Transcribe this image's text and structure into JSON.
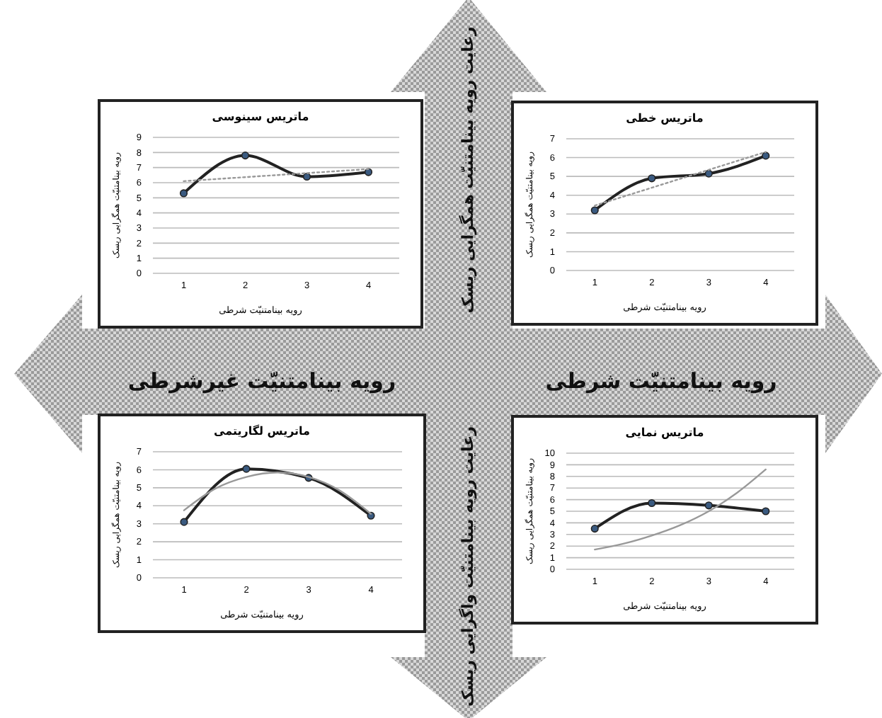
{
  "chart_data": [
    {
      "type": "line",
      "title": "ماتریس سینوسی",
      "xlabel": "رویه بینامتنیّت شرطی",
      "ylabel": "رویه بینامتنیّت همگرایی ریسک",
      "xlim": [
        0.5,
        4.5
      ],
      "xticks": [
        1,
        2,
        3,
        4
      ],
      "ylim": [
        0,
        9
      ],
      "yticks": [
        0,
        1,
        2,
        3,
        4,
        5,
        6,
        7,
        8,
        9
      ],
      "grid": "y",
      "series": [
        {
          "x": [
            1,
            2,
            3,
            4
          ],
          "values": [
            5.3,
            7.8,
            6.4,
            6.7
          ],
          "color": "#222222",
          "marker": "circle",
          "line_style": "solid"
        },
        {
          "x": [
            1,
            4
          ],
          "values": [
            6.1,
            6.9
          ],
          "color": "#999999",
          "marker": "none",
          "line_style": "dotted"
        }
      ]
    },
    {
      "type": "line",
      "title": "ماتریس خطی",
      "xlabel": "رویه بینامتنیّت شرطی",
      "ylabel": "رویه بینامتنیّت همگرایی ریسک",
      "xlim": [
        0.5,
        4.5
      ],
      "xticks": [
        1,
        2,
        3,
        4
      ],
      "ylim": [
        0,
        7
      ],
      "yticks": [
        0,
        1,
        2,
        3,
        4,
        5,
        6,
        7
      ],
      "grid": "y",
      "series": [
        {
          "x": [
            1,
            2,
            3,
            4
          ],
          "values": [
            3.2,
            4.9,
            5.15,
            6.1
          ],
          "color": "#222222",
          "marker": "circle",
          "line_style": "solid"
        },
        {
          "x": [
            1,
            4
          ],
          "values": [
            3.45,
            6.3
          ],
          "color": "#999999",
          "marker": "none",
          "line_style": "dotted"
        }
      ]
    },
    {
      "type": "line",
      "title": "ماتریس لگاریتمی",
      "xlabel": "رویه بینامتنیّت شرطی",
      "ylabel": "رویه بینامتنیّت همگرایی ریسک",
      "xlim": [
        0.5,
        4.5
      ],
      "xticks": [
        1,
        2,
        3,
        4
      ],
      "ylim": [
        0,
        7
      ],
      "yticks": [
        0,
        1,
        2,
        3,
        4,
        5,
        6,
        7
      ],
      "grid": "y",
      "series": [
        {
          "x": [
            1,
            2,
            3,
            4
          ],
          "values": [
            3.1,
            6.05,
            5.55,
            3.45
          ],
          "color": "#222222",
          "marker": "circle",
          "line_style": "solid"
        },
        {
          "x": [
            1,
            1.5,
            2,
            2.5,
            3,
            3.5,
            4
          ],
          "values": [
            3.75,
            4.95,
            5.6,
            5.85,
            5.6,
            4.85,
            3.55
          ],
          "color": "#999999",
          "marker": "none",
          "line_style": "solid"
        }
      ]
    },
    {
      "type": "line",
      "title": "ماتریس نمایی",
      "xlabel": "رویه بینامتنیّت شرطی",
      "ylabel": "رویه بینامتنیّت همگرایی ریسک",
      "xlim": [
        0.5,
        4.5
      ],
      "xticks": [
        1,
        2,
        3,
        4
      ],
      "ylim": [
        0,
        10
      ],
      "yticks": [
        0,
        1,
        2,
        3,
        4,
        5,
        6,
        7,
        8,
        9,
        10
      ],
      "grid": "y",
      "series": [
        {
          "x": [
            1,
            2,
            3,
            4
          ],
          "values": [
            3.5,
            5.7,
            5.5,
            5.0
          ],
          "color": "#222222",
          "marker": "circle",
          "line_style": "solid"
        },
        {
          "x": [
            1,
            1.5,
            2,
            2.5,
            3,
            3.5,
            4
          ],
          "values": [
            1.7,
            2.2,
            2.9,
            3.8,
            5.0,
            6.6,
            8.6
          ],
          "color": "#999999",
          "marker": "none",
          "line_style": "solid"
        }
      ]
    },
    {
      "type": "other",
      "annotations": [
        "رعایت رویه بینامتنیّت همگرایی ریسک",
        "رویه بینامتنیّت غیرشرطی",
        "رویه بینامتنیّت شرطی",
        "رعایت رویه بینامتنیّت واگرایی ریسک"
      ]
    }
  ]
}
